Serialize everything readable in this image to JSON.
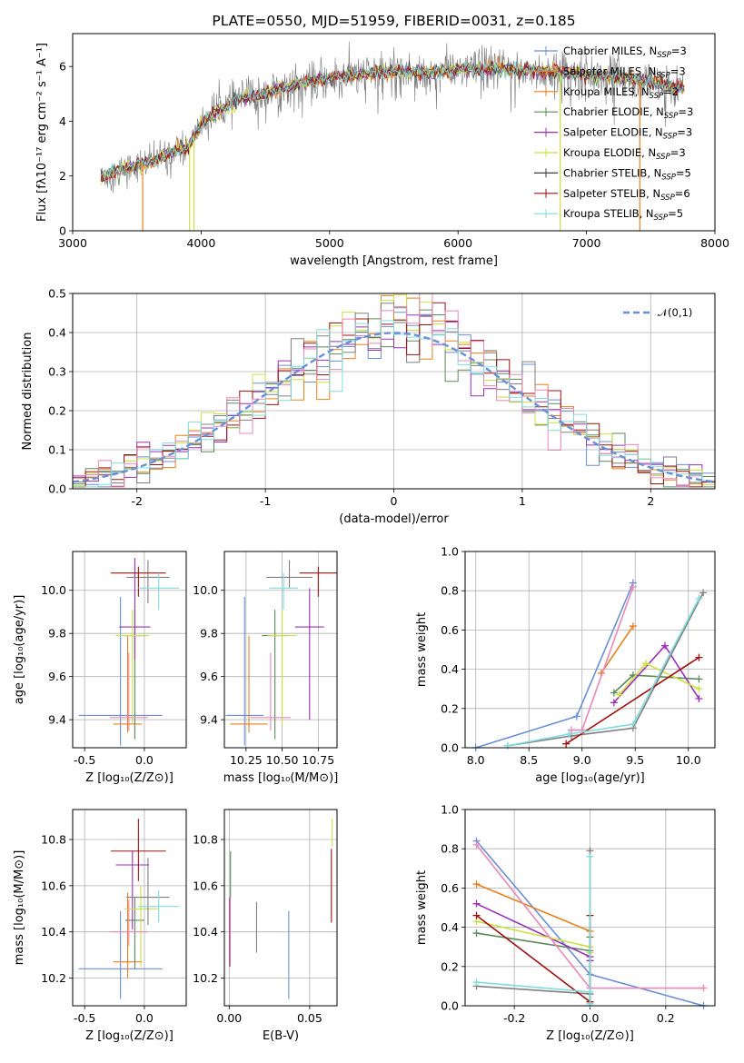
{
  "colors": [
    "#6a8fd8",
    "#e8801c",
    "#5a8a5a",
    "#9b30b8",
    "#cde040",
    "#808080",
    "#a01010",
    "#e888b8",
    "#80dcdc"
  ],
  "legend_colors": [
    "#6a8fd8",
    "#e8801c",
    "#e8801c",
    "#5a8a5a",
    "#9b30b8",
    "#cde040",
    "#404040",
    "#a01010",
    "#80dcdc"
  ],
  "chart_data": [
    {
      "id": "spectrum",
      "type": "line",
      "title": "PLATE=0550, MJD=51959, FIBERID=0031, z=0.185",
      "xlabel": "wavelength [Angstrom, rest frame]",
      "ylabel": "Flux [fλ10⁻¹⁷ erg cm⁻² s⁻¹ A⁻¹]",
      "xlim": [
        3000,
        8000
      ],
      "ylim": [
        0,
        7.2
      ],
      "xticks": [
        3000,
        4000,
        5000,
        6000,
        7000,
        8000
      ],
      "yticks": [
        0,
        2,
        4,
        6
      ],
      "grid": false,
      "legend_position": "right",
      "legend": [
        {
          "label": "Chabrier MILES, N",
          "sub": "SSP",
          "suffix": "=3"
        },
        {
          "label": "Salpeter MILES, N",
          "sub": "SSP",
          "suffix": "=3"
        },
        {
          "label": "Kroupa MILES, N",
          "sub": "SSP",
          "suffix": "=2"
        },
        {
          "label": "Chabrier ELODIE, N",
          "sub": "SSP",
          "suffix": "=3"
        },
        {
          "label": "Salpeter ELODIE, N",
          "sub": "SSP",
          "suffix": "=3"
        },
        {
          "label": "Kroupa ELODIE, N",
          "sub": "SSP",
          "suffix": "=3"
        },
        {
          "label": "Chabrier STELIB, N",
          "sub": "SSP",
          "suffix": "=5"
        },
        {
          "label": "Salpeter STELIB, N",
          "sub": "SSP",
          "suffix": "=6"
        },
        {
          "label": "Kroupa STELIB, N",
          "sub": "SSP",
          "suffix": "=5"
        }
      ],
      "continuum_anchors": [
        [
          3220,
          1.9
        ],
        [
          3400,
          2.3
        ],
        [
          3600,
          2.5
        ],
        [
          3750,
          2.8
        ],
        [
          3900,
          3.1
        ],
        [
          4000,
          3.9
        ],
        [
          4100,
          4.3
        ],
        [
          4300,
          4.8
        ],
        [
          4500,
          5.0
        ],
        [
          4700,
          5.3
        ],
        [
          4900,
          5.5
        ],
        [
          5200,
          5.7
        ],
        [
          5500,
          5.8
        ],
        [
          5800,
          5.8
        ],
        [
          6100,
          5.9
        ],
        [
          6400,
          5.9
        ],
        [
          6700,
          5.8
        ],
        [
          7000,
          5.7
        ],
        [
          7300,
          5.6
        ],
        [
          7600,
          5.3
        ],
        [
          7750,
          5.2
        ]
      ]
    },
    {
      "id": "residuals",
      "type": "step",
      "xlabel": "(data-model)/error",
      "ylabel": "Normed distribution",
      "xlim": [
        -2.5,
        2.5
      ],
      "ylim": [
        0,
        0.5
      ],
      "xticks": [
        -2,
        -1,
        0,
        1,
        2
      ],
      "yticks": [
        0.0,
        0.1,
        0.2,
        0.3,
        0.4,
        0.5
      ],
      "grid": true,
      "legend_position": "top-right",
      "legend": [
        "𝒩(0,1)"
      ],
      "bin_width": 0.1
    },
    {
      "id": "z-age",
      "type": "errorbar",
      "xlabel": "Z [log₁₀(Z/Z⊙)]",
      "ylabel": "age  [log₁₀(age/yr)]",
      "xlim": [
        -0.6,
        0.35
      ],
      "ylim": [
        9.27,
        10.18
      ],
      "xticks": [
        -0.5,
        0.0
      ],
      "yticks": [
        9.4,
        9.6,
        9.8,
        10.0
      ],
      "grid": true,
      "points": [
        {
          "x": -0.2,
          "xerr": 0.35,
          "y": 9.42,
          "yerr": [
            0.14,
            0.55
          ]
        },
        {
          "x": -0.14,
          "xerr": 0.12,
          "y": 9.38,
          "yerr": [
            0.04,
            0.41
          ]
        },
        {
          "x": -0.08,
          "xerr": 0.08,
          "y": 9.79,
          "yerr": [
            0.48,
            0.12
          ]
        },
        {
          "x": -0.08,
          "xerr": 0.13,
          "y": 9.83,
          "yerr": [
            0.15,
            0.32
          ]
        },
        {
          "x": -0.1,
          "xerr": 0.14,
          "y": 9.79,
          "yerr": [
            0.41,
            0.12
          ]
        },
        {
          "x": 0.03,
          "xerr": 0.18,
          "y": 10.06,
          "yerr": [
            0.12,
            0.08
          ]
        },
        {
          "x": -0.05,
          "xerr": 0.23,
          "y": 10.08,
          "yerr": [
            0.11,
            0.03
          ]
        },
        {
          "x": -0.13,
          "xerr": 0.16,
          "y": 9.41,
          "yerr": [
            0.06,
            0.3
          ]
        },
        {
          "x": 0.12,
          "xerr": 0.17,
          "y": 10.01,
          "yerr": [
            0.1,
            0.07
          ]
        }
      ]
    },
    {
      "id": "mass-age",
      "type": "errorbar",
      "xlabel": "mass [log₁₀(M/M⊙)]",
      "ylabel": "",
      "xlim": [
        10.1,
        10.88
      ],
      "ylim": [
        9.27,
        10.18
      ],
      "xticks": [
        10.25,
        10.5,
        10.75
      ],
      "yticks": [
        9.4,
        9.6,
        9.8,
        10.0
      ],
      "grid": true,
      "points": [
        {
          "x": 10.24,
          "xerr": 0.13,
          "y": 9.42,
          "yerr": [
            0.14,
            0.55
          ]
        },
        {
          "x": 10.27,
          "xerr": 0.13,
          "y": 9.38,
          "yerr": [
            0.04,
            0.41
          ]
        },
        {
          "x": 10.45,
          "xerr": 0.09,
          "y": 9.79,
          "yerr": [
            0.48,
            0.12
          ]
        },
        {
          "x": 10.69,
          "xerr": 0.1,
          "y": 9.83,
          "yerr": [
            0.43,
            0.18
          ]
        },
        {
          "x": 10.5,
          "xerr": 0.1,
          "y": 9.79,
          "yerr": [
            0.41,
            0.12
          ]
        },
        {
          "x": 10.55,
          "xerr": 0.16,
          "y": 10.06,
          "yerr": [
            0.05,
            0.08
          ]
        },
        {
          "x": 10.75,
          "xerr": 0.13,
          "y": 10.08,
          "yerr": [
            0.11,
            0.03
          ]
        },
        {
          "x": 10.42,
          "xerr": 0.14,
          "y": 9.41,
          "yerr": [
            0.06,
            0.3
          ]
        },
        {
          "x": 10.51,
          "xerr": 0.1,
          "y": 10.01,
          "yerr": [
            0.1,
            0.07
          ]
        }
      ]
    },
    {
      "id": "mass-weight-age",
      "type": "line",
      "xlabel": "age  [log₁₀(age/yr)]",
      "ylabel": "mass weight",
      "xlim": [
        7.9,
        10.25
      ],
      "ylim": [
        0,
        1.0
      ],
      "xticks": [
        8.0,
        8.5,
        9.0,
        9.5,
        10.0
      ],
      "yticks": [
        0.0,
        0.2,
        0.4,
        0.6,
        0.8,
        1.0
      ],
      "grid": true,
      "series": [
        {
          "x": [
            8.0,
            8.95,
            9.48
          ],
          "y": [
            0.0,
            0.16,
            0.84
          ]
        },
        {
          "x": [
            9.18,
            9.48
          ],
          "y": [
            0.38,
            0.62
          ]
        },
        {
          "x": [
            9.3,
            9.48,
            10.1
          ],
          "y": [
            0.28,
            0.37,
            0.35
          ]
        },
        {
          "x": [
            9.3,
            9.78,
            10.1
          ],
          "y": [
            0.23,
            0.52,
            0.25
          ]
        },
        {
          "x": [
            9.35,
            9.6,
            10.1
          ],
          "y": [
            0.27,
            0.43,
            0.3
          ]
        },
        {
          "x": [
            8.3,
            8.9,
            9.48,
            10.14
          ],
          "y": [
            0.01,
            0.06,
            0.1,
            0.79
          ]
        },
        {
          "x": [
            8.85,
            10.1
          ],
          "y": [
            0.02,
            0.46
          ]
        },
        {
          "x": [
            8.9,
            9.0,
            9.48
          ],
          "y": [
            0.09,
            0.09,
            0.82
          ]
        },
        {
          "x": [
            8.3,
            8.88,
            9.48,
            10.1
          ],
          "y": [
            0.01,
            0.07,
            0.12,
            0.76
          ]
        }
      ]
    },
    {
      "id": "z-mass",
      "type": "errorbar",
      "xlabel": "Z [log₁₀(Z/Z⊙)]",
      "ylabel": "mass [log₁₀(M/M⊙)]",
      "xlim": [
        -0.6,
        0.35
      ],
      "ylim": [
        10.08,
        10.93
      ],
      "xticks": [
        -0.5,
        0.0
      ],
      "yticks": [
        10.2,
        10.4,
        10.6,
        10.8
      ],
      "grid": true,
      "points": [
        {
          "x": -0.2,
          "xerr": 0.35,
          "y": 10.24,
          "yerr": [
            0.13,
            0.25
          ]
        },
        {
          "x": -0.14,
          "xerr": 0.12,
          "y": 10.27,
          "yerr": [
            0.07,
            0.3
          ]
        },
        {
          "x": -0.08,
          "xerr": 0.08,
          "y": 10.45,
          "yerr": [
            0.21,
            0.1
          ]
        },
        {
          "x": -0.1,
          "xerr": 0.14,
          "y": 10.69,
          "yerr": [
            0.28,
            0.06
          ]
        },
        {
          "x": -0.03,
          "xerr": 0.14,
          "y": 10.5,
          "yerr": [
            0.25,
            0.1
          ]
        },
        {
          "x": 0.03,
          "xerr": 0.18,
          "y": 10.55,
          "yerr": [
            0.12,
            0.17
          ]
        },
        {
          "x": -0.05,
          "xerr": 0.23,
          "y": 10.75,
          "yerr": [
            0.13,
            0.14
          ]
        },
        {
          "x": -0.13,
          "xerr": 0.16,
          "y": 10.4,
          "yerr": [
            0.06,
            0.14
          ]
        },
        {
          "x": 0.12,
          "xerr": 0.17,
          "y": 10.51,
          "yerr": [
            0.07,
            0.07
          ]
        }
      ]
    },
    {
      "id": "ebv-mass",
      "type": "errorbar",
      "xlabel": "E(B-V)",
      "ylabel": "",
      "xlim": [
        -0.003,
        0.067
      ],
      "ylim": [
        10.08,
        10.93
      ],
      "xticks": [
        0.0,
        0.05
      ],
      "xticklabels": [
        "0.00",
        "0.05"
      ],
      "yticks": [
        10.2,
        10.4,
        10.6,
        10.8
      ],
      "grid": true,
      "points": [
        {
          "x": 0.037,
          "xerr": 0,
          "y": 10.3,
          "yerr": [
            0.19,
            0.19
          ]
        },
        {
          "x": 0.0005,
          "xerr": 0,
          "y": 10.4,
          "yerr": [
            0.15,
            0.15
          ]
        },
        {
          "x": 0.0008,
          "xerr": 0,
          "y": 10.65,
          "yerr": [
            0.1,
            0.1
          ]
        },
        {
          "x": 0.0003,
          "xerr": 0,
          "y": 10.4,
          "yerr": [
            0.15,
            0.15
          ]
        },
        {
          "x": 0.064,
          "xerr": 0,
          "y": 10.83,
          "yerr": [
            0.06,
            0.06
          ]
        },
        {
          "x": 0.017,
          "xerr": 0,
          "y": 10.42,
          "yerr": [
            0.11,
            0.11
          ]
        },
        {
          "x": 0.0635,
          "xerr": 0,
          "y": 10.6,
          "yerr": [
            0.16,
            0.16
          ]
        }
      ]
    },
    {
      "id": "mass-weight-z",
      "type": "line",
      "xlabel": "Z [log₁₀(Z/Z⊙)]",
      "ylabel": "mass weight",
      "xlim": [
        -0.33,
        0.33
      ],
      "ylim": [
        0,
        1.0
      ],
      "xticks": [
        -0.2,
        0.0,
        0.2
      ],
      "yticks": [
        0.0,
        0.2,
        0.4,
        0.6,
        0.8,
        1.0
      ],
      "grid": true,
      "series": [
        {
          "x": [
            -0.3,
            0.0,
            0.3
          ],
          "y": [
            0.84,
            0.16,
            0.0
          ]
        },
        {
          "x": [
            -0.3,
            0.0
          ],
          "y": [
            0.62,
            0.38
          ]
        },
        {
          "x": [
            -0.3,
            0.0,
            0.0
          ],
          "y": [
            0.37,
            0.28,
            0.35
          ]
        },
        {
          "x": [
            -0.3,
            0.0,
            0.0
          ],
          "y": [
            0.52,
            0.25,
            0.23
          ]
        },
        {
          "x": [
            -0.3,
            0.0,
            0.0
          ],
          "y": [
            0.43,
            0.3,
            0.27
          ]
        },
        {
          "x": [
            -0.3,
            0.0,
            0.0,
            0.0
          ],
          "y": [
            0.1,
            0.06,
            0.01,
            0.79
          ]
        },
        {
          "x": [
            -0.3,
            0.0,
            0.0
          ],
          "y": [
            0.46,
            0.02,
            0.46
          ]
        },
        {
          "x": [
            -0.3,
            0.0,
            0.3
          ],
          "y": [
            0.82,
            0.09,
            0.09
          ]
        },
        {
          "x": [
            -0.3,
            0.0,
            0.0,
            0.0
          ],
          "y": [
            0.12,
            0.07,
            0.01,
            0.76
          ]
        }
      ]
    }
  ]
}
